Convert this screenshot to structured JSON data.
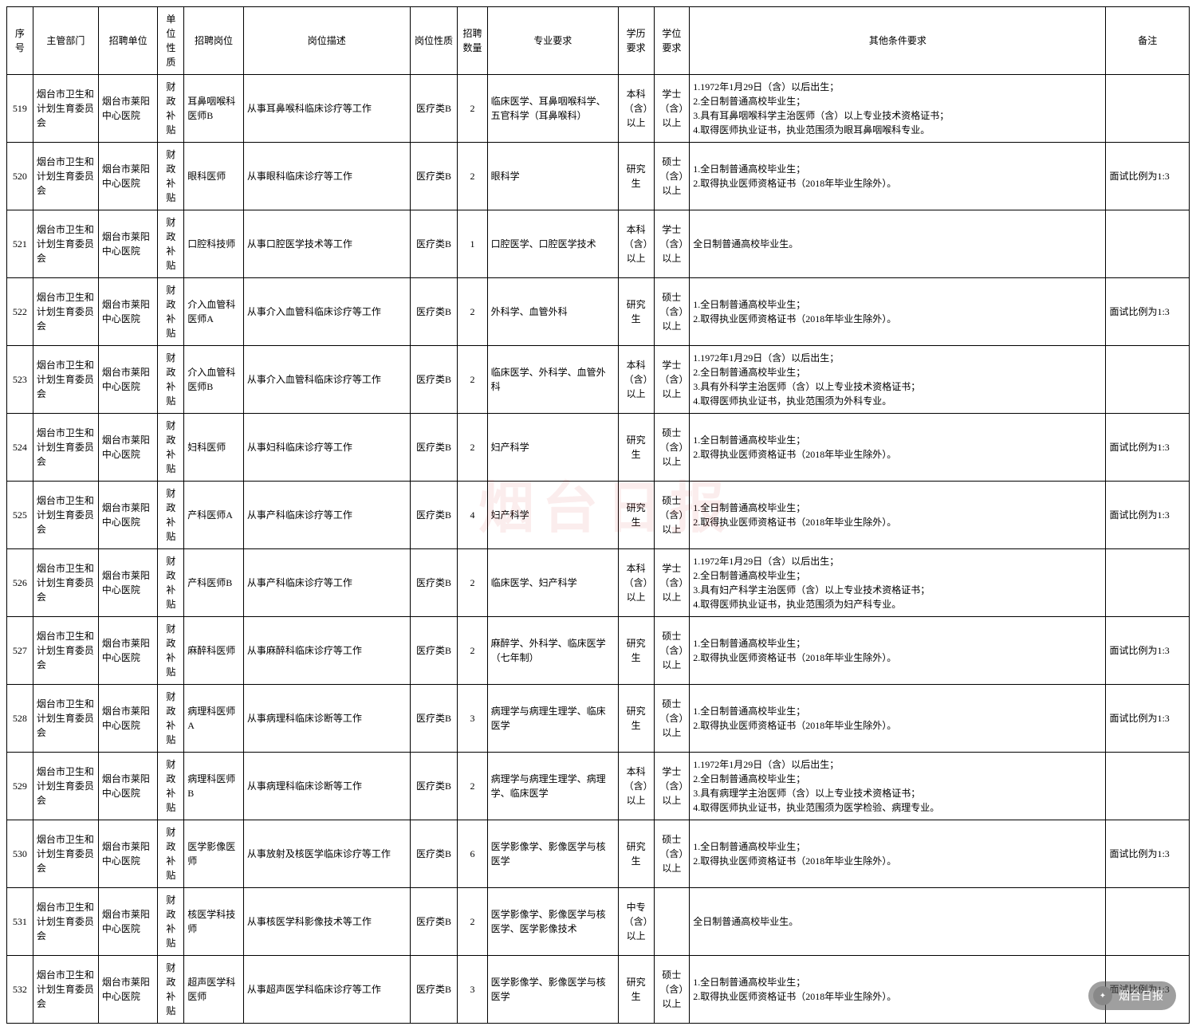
{
  "columns": [
    {
      "key": "seq",
      "label": "序号",
      "width": "2.2%",
      "align": "center"
    },
    {
      "key": "dept",
      "label": "主管部门",
      "width": "5.5%",
      "align": "left"
    },
    {
      "key": "unit",
      "label": "招聘单位",
      "width": "5%",
      "align": "left"
    },
    {
      "key": "unitType",
      "label": "单位性质",
      "width": "2.2%",
      "align": "center"
    },
    {
      "key": "position",
      "label": "招聘岗位",
      "width": "5%",
      "align": "left"
    },
    {
      "key": "desc",
      "label": "岗位描述",
      "width": "14%",
      "align": "left"
    },
    {
      "key": "posType",
      "label": "岗位性质",
      "width": "4%",
      "align": "center"
    },
    {
      "key": "count",
      "label": "招聘数量",
      "width": "2.5%",
      "align": "center"
    },
    {
      "key": "major",
      "label": "专业要求",
      "width": "11%",
      "align": "left"
    },
    {
      "key": "edu",
      "label": "学历要求",
      "width": "3%",
      "align": "center"
    },
    {
      "key": "degree",
      "label": "学位要求",
      "width": "3%",
      "align": "center"
    },
    {
      "key": "other",
      "label": "其他条件要求",
      "width": "35%",
      "align": "left"
    },
    {
      "key": "remark",
      "label": "备注",
      "width": "7%",
      "align": "left"
    }
  ],
  "rows": [
    {
      "seq": "519",
      "dept": "烟台市卫生和计划生育委员会",
      "unit": "烟台市莱阳中心医院",
      "unitType": "财政补贴",
      "position": "耳鼻咽喉科医师B",
      "desc": "从事耳鼻喉科临床诊疗等工作",
      "posType": "医疗类B",
      "count": "2",
      "major": "临床医学、耳鼻咽喉科学、五官科学（耳鼻喉科）",
      "edu": "本科（含）以上",
      "degree": "学士（含）以上",
      "other": "1.1972年1月29日（含）以后出生；\n2.全日制普通高校毕业生；\n3.具有耳鼻咽喉科学主治医师（含）以上专业技术资格证书；\n4.取得医师执业证书，执业范围须为眼耳鼻咽喉科专业。",
      "remark": ""
    },
    {
      "seq": "520",
      "dept": "烟台市卫生和计划生育委员会",
      "unit": "烟台市莱阳中心医院",
      "unitType": "财政补贴",
      "position": "眼科医师",
      "desc": "从事眼科临床诊疗等工作",
      "posType": "医疗类B",
      "count": "2",
      "major": "眼科学",
      "edu": "研究生",
      "degree": "硕士（含）以上",
      "other": "1.全日制普通高校毕业生；\n2.取得执业医师资格证书（2018年毕业生除外）。",
      "remark": "面试比例为1:3"
    },
    {
      "seq": "521",
      "dept": "烟台市卫生和计划生育委员会",
      "unit": "烟台市莱阳中心医院",
      "unitType": "财政补贴",
      "position": "口腔科技师",
      "desc": "从事口腔医学技术等工作",
      "posType": "医疗类B",
      "count": "1",
      "major": "口腔医学、口腔医学技术",
      "edu": "本科（含）以上",
      "degree": "学士（含）以上",
      "other": "全日制普通高校毕业生。",
      "remark": ""
    },
    {
      "seq": "522",
      "dept": "烟台市卫生和计划生育委员会",
      "unit": "烟台市莱阳中心医院",
      "unitType": "财政补贴",
      "position": "介入血管科医师A",
      "desc": "从事介入血管科临床诊疗等工作",
      "posType": "医疗类B",
      "count": "2",
      "major": "外科学、血管外科",
      "edu": "研究生",
      "degree": "硕士（含）以上",
      "other": "1.全日制普通高校毕业生；\n2.取得执业医师资格证书（2018年毕业生除外）。",
      "remark": "面试比例为1:3"
    },
    {
      "seq": "523",
      "dept": "烟台市卫生和计划生育委员会",
      "unit": "烟台市莱阳中心医院",
      "unitType": "财政补贴",
      "position": "介入血管科医师B",
      "desc": "从事介入血管科临床诊疗等工作",
      "posType": "医疗类B",
      "count": "2",
      "major": "临床医学、外科学、血管外科",
      "edu": "本科（含）以上",
      "degree": "学士（含）以上",
      "other": "1.1972年1月29日（含）以后出生；\n2.全日制普通高校毕业生；\n3.具有外科学主治医师（含）以上专业技术资格证书；\n4.取得医师执业证书，执业范围须为外科专业。",
      "remark": ""
    },
    {
      "seq": "524",
      "dept": "烟台市卫生和计划生育委员会",
      "unit": "烟台市莱阳中心医院",
      "unitType": "财政补贴",
      "position": "妇科医师",
      "desc": "从事妇科临床诊疗等工作",
      "posType": "医疗类B",
      "count": "2",
      "major": "妇产科学",
      "edu": "研究生",
      "degree": "硕士（含）以上",
      "other": "1.全日制普通高校毕业生；\n2.取得执业医师资格证书（2018年毕业生除外）。",
      "remark": "面试比例为1:3"
    },
    {
      "seq": "525",
      "dept": "烟台市卫生和计划生育委员会",
      "unit": "烟台市莱阳中心医院",
      "unitType": "财政补贴",
      "position": "产科医师A",
      "desc": "从事产科临床诊疗等工作",
      "posType": "医疗类B",
      "count": "4",
      "major": "妇产科学",
      "edu": "研究生",
      "degree": "硕士（含）以上",
      "other": "1.全日制普通高校毕业生；\n2.取得执业医师资格证书（2018年毕业生除外）。",
      "remark": "面试比例为1:3"
    },
    {
      "seq": "526",
      "dept": "烟台市卫生和计划生育委员会",
      "unit": "烟台市莱阳中心医院",
      "unitType": "财政补贴",
      "position": "产科医师B",
      "desc": "从事产科临床诊疗等工作",
      "posType": "医疗类B",
      "count": "2",
      "major": "临床医学、妇产科学",
      "edu": "本科（含）以上",
      "degree": "学士（含）以上",
      "other": "1.1972年1月29日（含）以后出生；\n2.全日制普通高校毕业生；\n3.具有妇产科学主治医师（含）以上专业技术资格证书；\n4.取得医师执业证书，执业范围须为妇产科专业。",
      "remark": ""
    },
    {
      "seq": "527",
      "dept": "烟台市卫生和计划生育委员会",
      "unit": "烟台市莱阳中心医院",
      "unitType": "财政补贴",
      "position": "麻醉科医师",
      "desc": "从事麻醉科临床诊疗等工作",
      "posType": "医疗类B",
      "count": "2",
      "major": "麻醉学、外科学、临床医学（七年制）",
      "edu": "研究生",
      "degree": "硕士（含）以上",
      "other": "1.全日制普通高校毕业生；\n2.取得执业医师资格证书（2018年毕业生除外）。",
      "remark": "面试比例为1:3"
    },
    {
      "seq": "528",
      "dept": "烟台市卫生和计划生育委员会",
      "unit": "烟台市莱阳中心医院",
      "unitType": "财政补贴",
      "position": "病理科医师A",
      "desc": "从事病理科临床诊断等工作",
      "posType": "医疗类B",
      "count": "3",
      "major": "病理学与病理生理学、临床医学",
      "edu": "研究生",
      "degree": "硕士（含）以上",
      "other": "1.全日制普通高校毕业生；\n2.取得执业医师资格证书（2018年毕业生除外）。",
      "remark": "面试比例为1:3"
    },
    {
      "seq": "529",
      "dept": "烟台市卫生和计划生育委员会",
      "unit": "烟台市莱阳中心医院",
      "unitType": "财政补贴",
      "position": "病理科医师B",
      "desc": "从事病理科临床诊断等工作",
      "posType": "医疗类B",
      "count": "2",
      "major": "病理学与病理生理学、病理学、临床医学",
      "edu": "本科（含）以上",
      "degree": "学士（含）以上",
      "other": "1.1972年1月29日（含）以后出生；\n2.全日制普通高校毕业生；\n3.具有病理学主治医师（含）以上专业技术资格证书；\n4.取得医师执业证书，执业范围须为医学检验、病理专业。",
      "remark": ""
    },
    {
      "seq": "530",
      "dept": "烟台市卫生和计划生育委员会",
      "unit": "烟台市莱阳中心医院",
      "unitType": "财政补贴",
      "position": "医学影像医师",
      "desc": "从事放射及核医学临床诊疗等工作",
      "posType": "医疗类B",
      "count": "6",
      "major": "医学影像学、影像医学与核医学",
      "edu": "研究生",
      "degree": "硕士（含）以上",
      "other": "1.全日制普通高校毕业生；\n2.取得执业医师资格证书（2018年毕业生除外）。",
      "remark": "面试比例为1:3"
    },
    {
      "seq": "531",
      "dept": "烟台市卫生和计划生育委员会",
      "unit": "烟台市莱阳中心医院",
      "unitType": "财政补贴",
      "position": "核医学科技师",
      "desc": "从事核医学科影像技术等工作",
      "posType": "医疗类B",
      "count": "2",
      "major": "医学影像学、影像医学与核医学、医学影像技术",
      "edu": "中专（含）以上",
      "degree": "",
      "other": "全日制普通高校毕业生。",
      "remark": ""
    },
    {
      "seq": "532",
      "dept": "烟台市卫生和计划生育委员会",
      "unit": "烟台市莱阳中心医院",
      "unitType": "财政补贴",
      "position": "超声医学科医师",
      "desc": "从事超声医学科临床诊疗等工作",
      "posType": "医疗类B",
      "count": "3",
      "major": "医学影像学、影像医学与核医学",
      "edu": "研究生",
      "degree": "硕士（含）以上",
      "other": "1.全日制普通高校毕业生；\n2.取得执业医师资格证书（2018年毕业生除外）。",
      "remark": "面试比例为1:3"
    }
  ],
  "watermark_text": "烟台日报",
  "footer_text": "烟台日报"
}
